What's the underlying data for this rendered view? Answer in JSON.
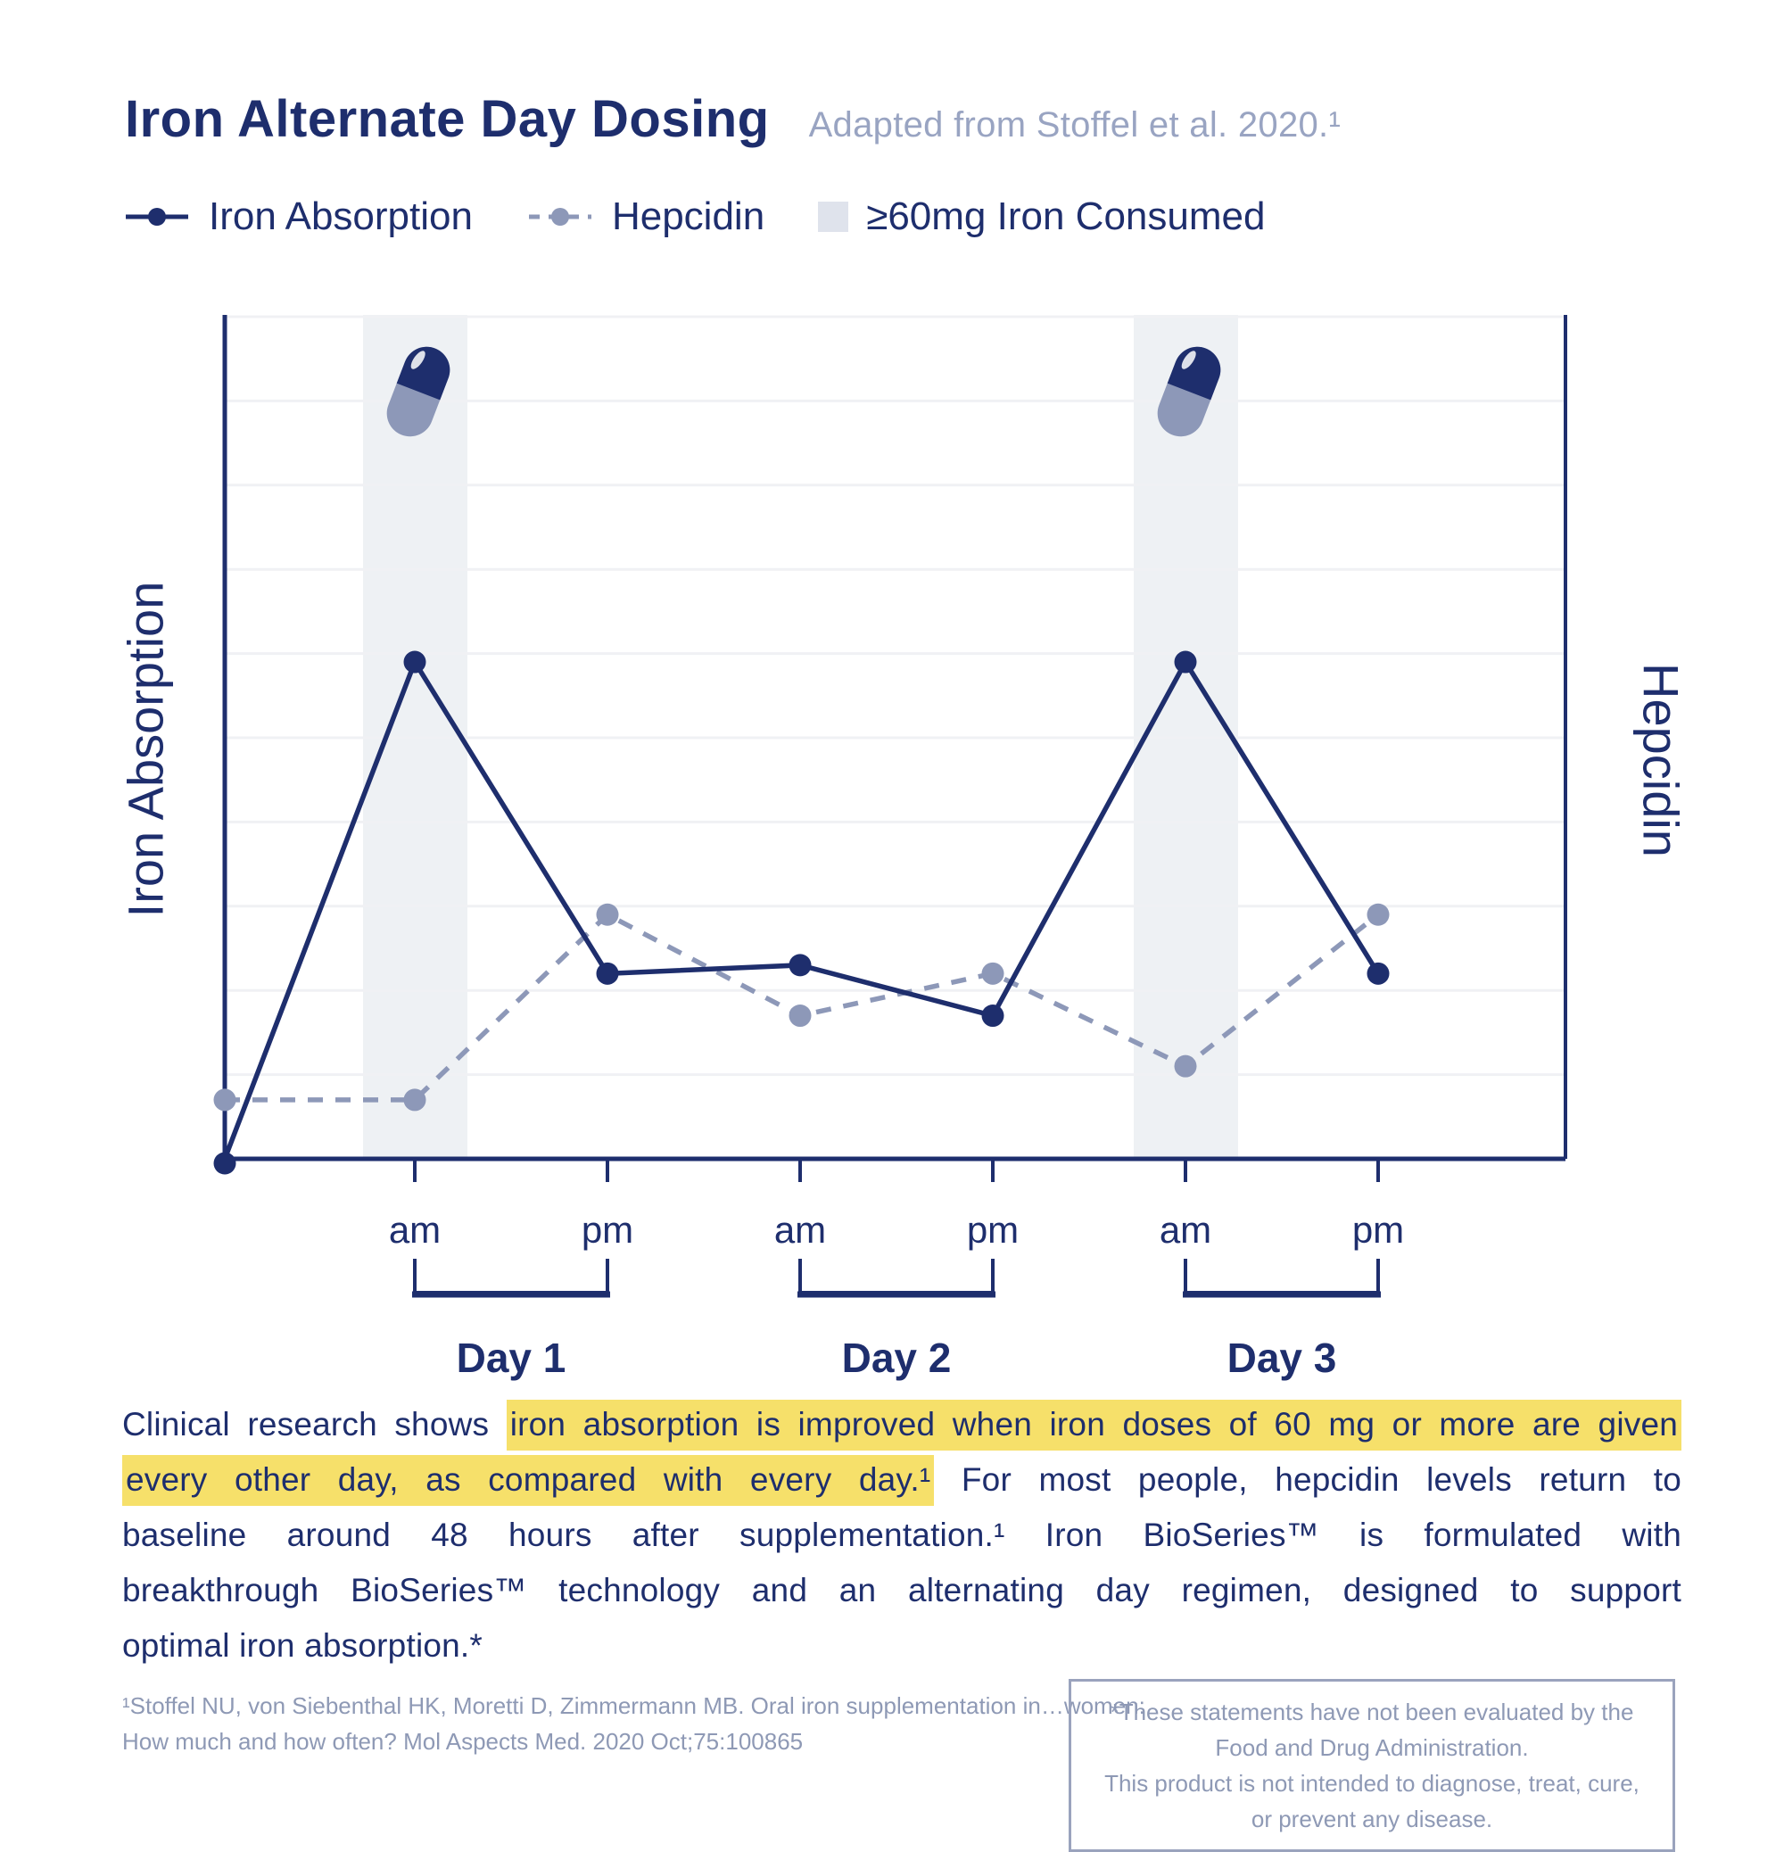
{
  "colors": {
    "navy": "#1e2e6d",
    "slate": "#8d98b8",
    "subtitle": "#99a4c2",
    "band": "#eef1f4",
    "swatch": "#dfe3ec",
    "grid": "#f0f1f4",
    "highlight": "#f6e06a",
    "footnote": "#8e99b5",
    "boxborder": "#9aa3bd",
    "pill_shine": "#ffffff"
  },
  "header": {
    "title": "Iron Alternate Day Dosing",
    "subtitle": "Adapted from Stoffel et al. 2020.¹"
  },
  "legend": [
    {
      "label": "Iron Absorption"
    },
    {
      "label": "Hepcidin"
    },
    {
      "label": "≥60mg Iron Consumed"
    }
  ],
  "chart_data": {
    "type": "line",
    "title": "Iron Alternate Day Dosing",
    "ylabel_left": "Iron Absorption",
    "ylabel_right": "Hepcidin",
    "ylim": [
      0,
      10
    ],
    "grid": "horizontal-only, 10 bands",
    "legend_position": "top-left above chart",
    "x_tick_labels": [
      "am",
      "pm",
      "am",
      "pm",
      "am",
      "pm"
    ],
    "day_labels": [
      "Day 1",
      "Day 2",
      "Day 3"
    ],
    "day_tick_pairs": [
      [
        0,
        1
      ],
      [
        2,
        3
      ],
      [
        4,
        5
      ]
    ],
    "shaded_bands": [
      {
        "center_tick": 0,
        "meaning": "≥60mg Iron Consumed",
        "pill_icon": true
      },
      {
        "center_tick": 4,
        "meaning": "≥60mg Iron Consumed",
        "pill_icon": true
      }
    ],
    "series": [
      {
        "name": "Iron Absorption",
        "line_style": "solid",
        "color_key": "navy",
        "points": [
          {
            "x": -1,
            "v": 0.0
          },
          {
            "x": 0,
            "v": 5.9
          },
          {
            "x": 1,
            "v": 2.2
          },
          {
            "x": 2,
            "v": 2.3
          },
          {
            "x": 3,
            "v": 1.7
          },
          {
            "x": 4,
            "v": 5.9
          },
          {
            "x": 5,
            "v": 2.2
          }
        ]
      },
      {
        "name": "Hepcidin",
        "line_style": "dashed",
        "color_key": "slate",
        "points": [
          {
            "x": -1,
            "v": 0.7
          },
          {
            "x": 0,
            "v": 0.7
          },
          {
            "x": 1,
            "v": 2.9
          },
          {
            "x": 2,
            "v": 1.7
          },
          {
            "x": 3,
            "v": 2.2
          },
          {
            "x": 4,
            "v": 1.1
          },
          {
            "x": 5,
            "v": 2.9
          }
        ]
      }
    ]
  },
  "paragraph": {
    "lines": [
      {
        "last": false,
        "segments": [
          {
            "t": "Clinical research shows ",
            "hl": false
          },
          {
            "t": "iron absorption is improved when iron doses of 60 mg or more are given",
            "hl": true
          }
        ]
      },
      {
        "last": false,
        "segments": [
          {
            "t": "every other day, as compared with every day.¹",
            "hl": true
          },
          {
            "t": " For most people, hepcidin levels return to",
            "hl": false
          }
        ]
      },
      {
        "last": false,
        "segments": [
          {
            "t": "baseline around 48 hours after supplementation.¹ Iron BioSeries™ is formulated with",
            "hl": false
          }
        ]
      },
      {
        "last": false,
        "segments": [
          {
            "t": "breakthrough BioSeries™ technology and an alternating day regimen, designed to support",
            "hl": false
          }
        ]
      },
      {
        "last": true,
        "segments": [
          {
            "t": "optimal iron absorption.*",
            "hl": false
          }
        ]
      }
    ]
  },
  "footnote": {
    "line1": "¹Stoffel NU, von Siebenthal HK, Moretti D, Zimmermann MB. Oral iron supplementation in…women:",
    "line2": "How much and how often? Mol Aspects Med. 2020 Oct;75:100865"
  },
  "disclaimer": {
    "line1": "*These statements have not been evaluated by the Food and Drug Administration.",
    "line2": "This product is not intended to diagnose, treat, cure, or prevent any disease."
  }
}
